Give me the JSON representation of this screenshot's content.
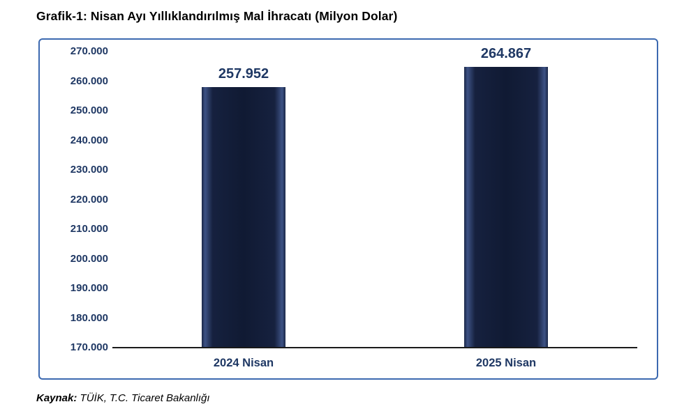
{
  "title": "Grafik-1: Nisan Ayı Yıllıklandırılmış Mal İhracatı (Milyon Dolar)",
  "source": {
    "label": "Kaynak:",
    "text": " TÜİK, T.C. Ticaret Bakanlığı"
  },
  "chart_data": {
    "type": "bar",
    "title": "Grafik-1: Nisan Ayı Yıllıklandırılmış Mal İhracatı (Milyon Dolar)",
    "categories": [
      "2024 Nisan",
      "2025 Nisan"
    ],
    "values": [
      257952,
      264867
    ],
    "value_labels": [
      "257.952",
      "264.867"
    ],
    "xlabel": "",
    "ylabel": "",
    "ylim": [
      170000,
      270000
    ],
    "ytick_step": 10000,
    "ytick_labels": [
      "270.000",
      "260.000",
      "250.000",
      "240.000",
      "230.000",
      "220.000",
      "210.000",
      "200.000",
      "190.000",
      "180.000",
      "170.000"
    ],
    "grid": false,
    "legend": false,
    "bar_color": "#101a33",
    "bar_edge_highlight": "#3d5285",
    "label_color": "#1f3864",
    "frame_border_color": "#3c69b0"
  }
}
